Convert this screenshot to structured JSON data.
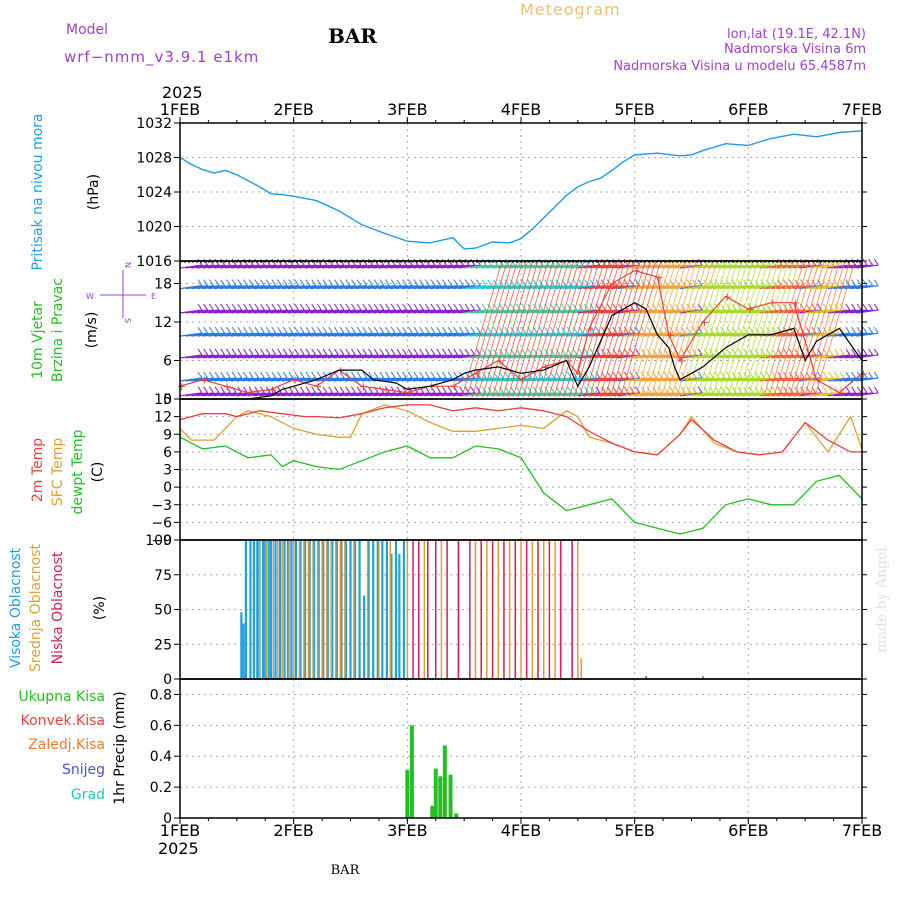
{
  "header": {
    "model_label": "Model",
    "model_value": "wrf−nmm_v3.9.1  e1km",
    "station": "BAR",
    "title": "Meteogram",
    "location": "lon,lat (19.1E, 42.1N)",
    "elevation": "Nadmorska Visina 6m",
    "model_elevation": "Nadmorska Visina u modelu 65.4587m"
  },
  "footer": {
    "station": "BAR",
    "credit": "made by Angel"
  },
  "time_axis": {
    "year": "2025",
    "days": [
      "1FEB",
      "2FEB",
      "3FEB",
      "4FEB",
      "5FEB",
      "6FEB",
      "7FEB"
    ],
    "range": [
      0,
      6
    ]
  },
  "colors": {
    "pressure": "#1e9be8",
    "temp2m": "#e8423a",
    "sfc": "#e0a030",
    "dewpt": "#22c022",
    "high_cloud": "#1ea0e6",
    "mid_cloud": "#e0a030",
    "low_cloud": "#d0205c",
    "precip": "#22c022",
    "gust": "#e8423a",
    "model": "#a040d0"
  },
  "chart_data": [
    {
      "type": "line",
      "panel": "pressure",
      "ylabel": [
        "Pritisak na nivou mora",
        "(hPa)"
      ],
      "ylim": [
        1016,
        1032
      ],
      "yticks": [
        1016,
        1020,
        1024,
        1028,
        1032
      ],
      "grid": true,
      "series": [
        {
          "values_x": [
            0,
            0.1,
            0.2,
            0.3,
            0.4,
            0.5,
            0.6,
            0.7,
            0.8,
            0.9,
            1.0,
            1.2,
            1.4,
            1.6,
            1.8,
            2.0,
            2.2,
            2.4,
            2.5,
            2.6,
            2.75,
            2.9,
            3.0,
            3.1,
            3.2,
            3.3,
            3.4,
            3.5,
            3.6,
            3.7,
            3.8,
            3.9,
            4.0,
            4.2,
            4.4,
            4.5,
            4.6,
            4.8,
            5.0,
            5.2,
            5.4,
            5.6,
            5.8,
            6.0
          ],
          "values_y": [
            1028.0,
            1027.2,
            1026.6,
            1026.2,
            1026.5,
            1026.0,
            1025.3,
            1024.6,
            1023.8,
            1023.7,
            1023.5,
            1023.0,
            1021.8,
            1020.2,
            1019.2,
            1018.3,
            1018.1,
            1018.7,
            1017.4,
            1017.5,
            1018.2,
            1018.1,
            1018.6,
            1019.7,
            1021.0,
            1022.3,
            1023.6,
            1024.6,
            1025.2,
            1025.6,
            1026.5,
            1027.5,
            1028.3,
            1028.5,
            1028.2,
            1028.3,
            1028.8,
            1029.6,
            1029.4,
            1030.2,
            1030.7,
            1030.4,
            1030.9,
            1031.1
          ]
        }
      ]
    },
    {
      "type": "line",
      "panel": "wind",
      "ylabel": [
        "10m Vjetar",
        "Brzina i Pravac",
        "(m/s)"
      ],
      "direction_legend": [
        "N",
        "W",
        "E",
        "S"
      ],
      "ylim": [
        0,
        21.5
      ],
      "yticks": [
        0,
        6,
        12,
        18
      ],
      "grid": true,
      "series": [
        {
          "name": "speed",
          "values_x": [
            0,
            0.2,
            0.4,
            0.6,
            0.8,
            0.9,
            1.0,
            1.2,
            1.4,
            1.6,
            1.7,
            1.9,
            2.0,
            2.2,
            2.4,
            2.5,
            2.6,
            2.8,
            3.0,
            3.2,
            3.4,
            3.5,
            3.6,
            3.8,
            4.0,
            4.1,
            4.2,
            4.3,
            4.35,
            4.4,
            4.5,
            4.6,
            4.8,
            5.0,
            5.2,
            5.4,
            5.5,
            5.6,
            5.7,
            5.8,
            6.0
          ],
          "values_y": [
            0,
            0,
            0,
            0,
            0.5,
            1.5,
            2,
            3,
            4.5,
            4.5,
            3,
            2.5,
            1.5,
            2,
            3,
            4,
            4.5,
            5,
            4,
            4.5,
            6,
            2,
            5,
            13,
            15,
            14,
            10,
            8,
            5,
            3,
            4,
            5,
            8,
            10,
            10,
            11,
            6,
            9,
            10,
            11,
            6
          ]
        },
        {
          "name": "gust",
          "values_x": [
            0,
            0.2,
            0.4,
            0.6,
            0.8,
            1.0,
            1.2,
            1.4,
            1.6,
            1.8,
            2.0,
            2.2,
            2.4,
            2.6,
            2.8,
            3.0,
            3.2,
            3.4,
            3.5,
            3.6,
            3.8,
            4.0,
            4.2,
            4.3,
            4.4,
            4.6,
            4.8,
            5.0,
            5.2,
            5.4,
            5.6,
            5.8,
            6.0
          ],
          "values_y": [
            2,
            3,
            2,
            1,
            1.5,
            3,
            2,
            4.5,
            2,
            1.5,
            1,
            2,
            2,
            4,
            6,
            3,
            5,
            6,
            4,
            11,
            18,
            20,
            19,
            10,
            6,
            12,
            16,
            14,
            15,
            15,
            3,
            1,
            4
          ]
        }
      ]
    },
    {
      "type": "line",
      "panel": "temperature",
      "ylabel": [
        "2m Temp",
        "SFC Temp",
        "dewpt Temp",
        "(C)"
      ],
      "ylim": [
        -9,
        15
      ],
      "yticks": [
        -9,
        -6,
        -3,
        0,
        3,
        6,
        9,
        12,
        15
      ],
      "grid": true,
      "series": [
        {
          "name": "2m Temp",
          "values_x": [
            0,
            0.2,
            0.4,
            0.5,
            0.7,
            0.9,
            1.1,
            1.2,
            1.4,
            1.6,
            1.8,
            2.0,
            2.2,
            2.4,
            2.6,
            2.8,
            3.0,
            3.2,
            3.4,
            3.6,
            3.8,
            4.0,
            4.2,
            4.4,
            4.5,
            4.7,
            4.9,
            5.1,
            5.3,
            5.5,
            5.7,
            5.9,
            6.0
          ],
          "values_y": [
            11.5,
            12.5,
            12.5,
            12,
            13,
            12.5,
            12,
            12,
            11.8,
            12.5,
            13.5,
            14,
            14,
            13,
            13.5,
            13,
            13.5,
            13,
            12,
            9.5,
            7.5,
            6,
            5.5,
            9,
            11.5,
            8,
            6,
            5.5,
            6,
            11,
            8,
            6,
            6
          ]
        },
        {
          "name": "SFC Temp",
          "values_x": [
            0,
            0.1,
            0.3,
            0.5,
            0.6,
            0.8,
            1.0,
            1.2,
            1.4,
            1.5,
            1.6,
            1.8,
            2.0,
            2.2,
            2.4,
            2.6,
            2.8,
            3.0,
            3.2,
            3.4,
            3.5,
            3.6,
            3.8,
            4.0,
            4.2,
            4.4,
            4.5,
            4.7,
            4.9,
            5.1,
            5.3,
            5.5,
            5.7,
            5.9,
            6.0
          ],
          "values_y": [
            10,
            8,
            8,
            12,
            13,
            12,
            10,
            9,
            8.5,
            8.5,
            12.5,
            14,
            13,
            11,
            9.5,
            9.5,
            10,
            10.5,
            10,
            13,
            12,
            8.5,
            7.5,
            6,
            5.5,
            9,
            12,
            7.5,
            6,
            5.5,
            6,
            11,
            6,
            12,
            6.5
          ]
        },
        {
          "name": "dewpt Temp",
          "values_x": [
            0,
            0.2,
            0.4,
            0.6,
            0.8,
            0.9,
            1.0,
            1.2,
            1.4,
            1.6,
            1.8,
            2.0,
            2.2,
            2.4,
            2.6,
            2.8,
            3.0,
            3.2,
            3.4,
            3.6,
            3.8,
            4.0,
            4.2,
            4.4,
            4.6,
            4.8,
            5.0,
            5.2,
            5.4,
            5.6,
            5.8,
            6.0
          ],
          "values_y": [
            8.5,
            6.5,
            7,
            5,
            5.5,
            3.5,
            4.5,
            3.5,
            3,
            4.5,
            6,
            7,
            5,
            5,
            7,
            6.5,
            5,
            -1,
            -4,
            -3,
            -2,
            -6,
            -7,
            -8,
            -7,
            -3,
            -2,
            -3,
            -3,
            1,
            2,
            -2
          ]
        }
      ]
    },
    {
      "type": "bar",
      "panel": "clouds",
      "ylabel": [
        "Visoka Oblacnost",
        "Srednja Oblacnost",
        "Niska Oblacnost",
        "(%)"
      ],
      "ylim": [
        0,
        100
      ],
      "yticks": [
        0,
        25,
        50,
        75,
        100
      ],
      "grid": true,
      "series": [
        {
          "name": "Visoka Oblacnost",
          "x": [
            0.54,
            0.56,
            0.58,
            0.62,
            0.65,
            0.68,
            0.7,
            0.73,
            0.75,
            0.78,
            0.8,
            0.84,
            0.88,
            0.92,
            0.95,
            0.98,
            1.02,
            1.06,
            1.1,
            1.14,
            1.18,
            1.22,
            1.26,
            1.3,
            1.34,
            1.38,
            1.42,
            1.46,
            1.5,
            1.54,
            1.58,
            1.62,
            1.66,
            1.7,
            1.74,
            1.78,
            1.82,
            1.86,
            1.9,
            1.93,
            1.97
          ],
          "values": [
            48,
            40,
            100,
            100,
            100,
            100,
            100,
            100,
            100,
            100,
            100,
            100,
            100,
            100,
            100,
            100,
            100,
            100,
            100,
            100,
            100,
            100,
            100,
            100,
            100,
            100,
            100,
            100,
            100,
            100,
            100,
            60,
            100,
            100,
            100,
            100,
            100,
            90,
            100,
            90,
            100
          ]
        },
        {
          "name": "Srednja Oblacnost",
          "x": [
            0.7,
            0.76,
            0.82,
            0.86,
            0.9,
            0.96,
            1.0,
            1.05,
            1.09,
            1.13,
            1.17,
            1.21,
            1.25,
            1.29,
            1.33,
            1.37,
            1.41,
            1.45,
            1.53,
            1.65,
            1.75,
            1.85,
            2.0,
            2.15,
            2.3,
            2.45,
            2.6,
            2.7,
            2.8,
            2.9,
            3.0,
            3.1,
            3.2,
            3.3,
            3.45,
            3.5,
            3.53
          ],
          "values": [
            100,
            100,
            100,
            100,
            100,
            100,
            100,
            100,
            100,
            100,
            100,
            100,
            100,
            100,
            100,
            100,
            100,
            100,
            100,
            100,
            100,
            100,
            100,
            100,
            100,
            100,
            100,
            100,
            100,
            100,
            100,
            100,
            100,
            100,
            100,
            100,
            15
          ]
        },
        {
          "name": "Niska Oblacnost",
          "x": [
            2.05,
            2.1,
            2.18,
            2.25,
            2.35,
            2.45,
            2.55,
            2.65,
            2.75,
            2.85,
            2.95,
            3.05,
            3.15,
            3.25,
            3.35,
            3.45,
            4.1,
            4.6
          ],
          "values": [
            100,
            100,
            100,
            100,
            100,
            100,
            100,
            100,
            100,
            100,
            100,
            100,
            100,
            100,
            100,
            100,
            2,
            2
          ]
        }
      ]
    },
    {
      "type": "bar",
      "panel": "precip",
      "ylabel": [
        "1hr Precip (mm)"
      ],
      "legend": [
        "Ukupna Kisa",
        "Konvek.Kisa",
        "Zaledj.Kisa",
        "Snijeg",
        "Grad"
      ],
      "legend_colors": [
        "#22c022",
        "#e8423a",
        "#f07a2a",
        "#5050e0",
        "#20c8c0"
      ],
      "ylim": [
        0,
        0.9
      ],
      "yticks": [
        0,
        0.2,
        0.4,
        0.6,
        0.8
      ],
      "grid": true,
      "series": [
        {
          "name": "Ukupna Kisa",
          "x": [
            2.0,
            2.04,
            2.22,
            2.25,
            2.29,
            2.33,
            2.38,
            2.43
          ],
          "values": [
            0.31,
            0.6,
            0.08,
            0.32,
            0.27,
            0.47,
            0.28,
            0.03
          ]
        }
      ]
    }
  ]
}
